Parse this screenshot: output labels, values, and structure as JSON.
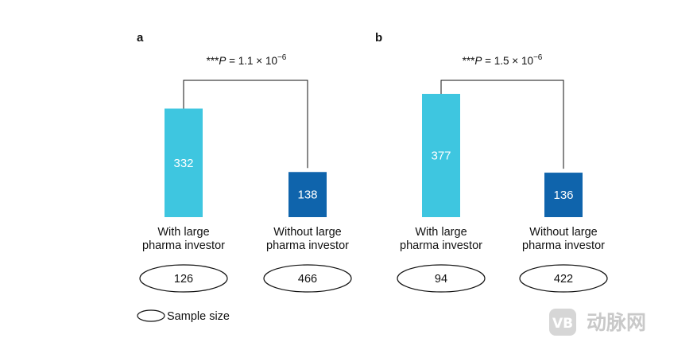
{
  "chart_data": [
    {
      "type": "bar",
      "panel": "a",
      "categories": [
        "With large\npharma investor",
        "Without large\npharma investor"
      ],
      "values": [
        332,
        138
      ],
      "sample_size": [
        126,
        466
      ],
      "significance": {
        "prefix": "***",
        "p_symbol": "P",
        "rest": " = 1.1 × 10",
        "exponent": "−6"
      },
      "colors": [
        "#3EC6E0",
        "#0F64AC"
      ]
    },
    {
      "type": "bar",
      "panel": "b",
      "categories": [
        "With large\npharma investor",
        "Without large\npharma investor"
      ],
      "values": [
        377,
        136
      ],
      "sample_size": [
        94,
        422
      ],
      "significance": {
        "prefix": "***",
        "p_symbol": "P",
        "rest": " = 1.5 × 10",
        "exponent": "−6"
      },
      "colors": [
        "#3EC6E0",
        "#0F64AC"
      ]
    }
  ],
  "legend": {
    "label": "Sample size",
    "symbol": "ellipse"
  },
  "watermark": {
    "text": "动脉网",
    "icon": "vb-logo-icon"
  }
}
